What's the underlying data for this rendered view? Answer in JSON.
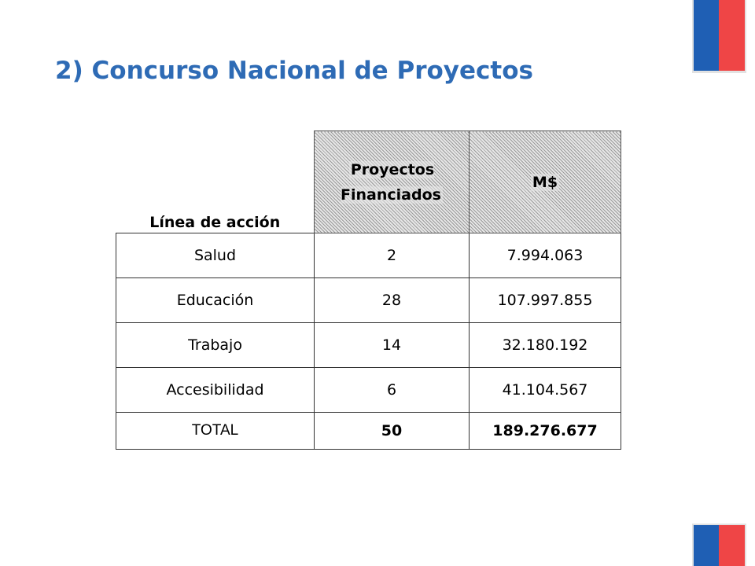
{
  "slide": {
    "title": "2) Concurso Nacional de Proyectos"
  },
  "table": {
    "headers": {
      "linea": "Línea de acción",
      "proyectos": "Proyectos Financiados",
      "monto": "M$"
    },
    "rows": [
      {
        "linea": "Salud",
        "proyectos": "2",
        "monto": "7.994.063"
      },
      {
        "linea": "Educación",
        "proyectos": "28",
        "monto": "107.997.855"
      },
      {
        "linea": "Trabajo",
        "proyectos": "14",
        "monto": "32.180.192"
      },
      {
        "linea": "Accesibilidad",
        "proyectos": "6",
        "monto": "41.104.567"
      }
    ],
    "total": {
      "linea": "TOTAL",
      "proyectos": "50",
      "monto": "189.276.677"
    }
  },
  "colors": {
    "title": "#2e6bb5",
    "flag_blue": "#1f5fb4",
    "flag_red": "#ef4546"
  }
}
